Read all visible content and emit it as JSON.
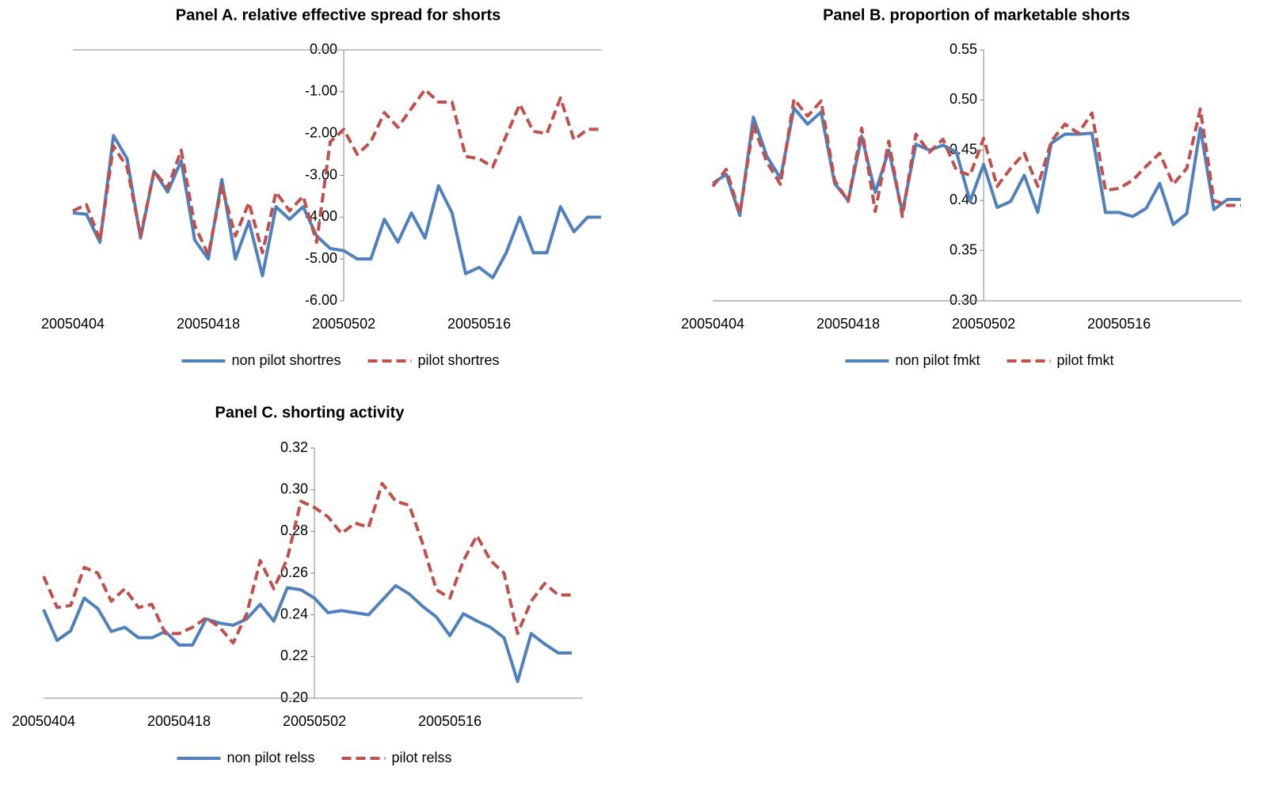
{
  "chart_data": [
    {
      "type": "line",
      "title": "Panel A. relative effective spread for shorts",
      "categories": [
        "20050404",
        null,
        null,
        null,
        null,
        null,
        null,
        null,
        null,
        null,
        "20050418",
        null,
        null,
        null,
        null,
        null,
        null,
        null,
        null,
        null,
        "20050502",
        null,
        null,
        null,
        null,
        null,
        null,
        null,
        null,
        null,
        "20050516",
        null,
        null,
        null,
        null,
        null,
        null,
        null,
        null,
        null
      ],
      "series": [
        {
          "name": "non pilot shortres",
          "color": "#4f81bd",
          "linestyle": "solid",
          "values": [
            -3.9,
            -3.93,
            -4.6,
            -2.05,
            -2.6,
            -4.5,
            -2.9,
            -3.4,
            -2.65,
            -4.55,
            -5.0,
            -3.1,
            -5.0,
            -4.1,
            -5.4,
            -3.75,
            -4.05,
            -3.75,
            -4.45,
            -4.75,
            -4.8,
            -5.0,
            -5.0,
            -4.05,
            -4.6,
            -3.9,
            -4.5,
            -3.25,
            -3.9,
            -5.35,
            -5.2,
            -5.45,
            -4.85,
            -4.0,
            -4.85,
            -4.85,
            -3.75,
            -4.35,
            -4.0,
            -4.0
          ]
        },
        {
          "name": "pilot shortres",
          "color": "#c0504d",
          "linestyle": "dashed",
          "values": [
            -3.85,
            -3.7,
            -4.55,
            -2.3,
            -2.8,
            -4.45,
            -2.9,
            -3.3,
            -2.4,
            -4.2,
            -4.9,
            -3.25,
            -4.45,
            -3.65,
            -4.85,
            -3.4,
            -3.85,
            -3.5,
            -4.6,
            -2.2,
            -1.9,
            -2.5,
            -2.2,
            -1.5,
            -1.85,
            -1.4,
            -0.95,
            -1.25,
            -1.25,
            -2.55,
            -2.6,
            -2.8,
            -2.05,
            -1.3,
            -1.95,
            -2.0,
            -1.15,
            -2.15,
            -1.9,
            -1.9
          ]
        }
      ],
      "ylim": [
        -6,
        0
      ],
      "yticks": [
        {
          "value": 0,
          "label": "0.00"
        },
        {
          "value": -1,
          "label": "-1.00"
        },
        {
          "value": -2,
          "label": "-2.00"
        },
        {
          "value": -3,
          "label": "-3.00"
        },
        {
          "value": -4,
          "label": "-4.00"
        },
        {
          "value": -5,
          "label": "-5.00"
        },
        {
          "value": -6,
          "label": "-6.00"
        }
      ],
      "grid": false,
      "legend": "bottom"
    },
    {
      "type": "line",
      "title": "Panel B. proportion of marketable shorts",
      "categories": [
        "20050404",
        null,
        null,
        null,
        null,
        null,
        null,
        null,
        null,
        null,
        "20050418",
        null,
        null,
        null,
        null,
        null,
        null,
        null,
        null,
        null,
        "20050502",
        null,
        null,
        null,
        null,
        null,
        null,
        null,
        null,
        null,
        "20050516",
        null,
        null,
        null,
        null,
        null,
        null,
        null,
        null,
        null
      ],
      "series": [
        {
          "name": "non pilot fmkt",
          "color": "#4f81bd",
          "linestyle": "solid",
          "values": [
            0.417,
            0.426,
            0.385,
            0.483,
            0.444,
            0.422,
            0.492,
            0.476,
            0.488,
            0.417,
            0.4,
            0.464,
            0.408,
            0.45,
            0.388,
            0.456,
            0.45,
            0.455,
            0.448,
            0.399,
            0.436,
            0.393,
            0.399,
            0.425,
            0.388,
            0.457,
            0.466,
            0.466,
            0.467,
            0.388,
            0.388,
            0.384,
            0.392,
            0.417,
            0.376,
            0.387,
            0.472,
            0.391,
            0.401,
            0.401
          ]
        },
        {
          "name": "pilot fmkt",
          "color": "#c0504d",
          "linestyle": "dashed",
          "values": [
            0.414,
            0.431,
            0.387,
            0.475,
            0.438,
            0.416,
            0.501,
            0.484,
            0.499,
            0.42,
            0.399,
            0.472,
            0.389,
            0.459,
            0.384,
            0.466,
            0.448,
            0.461,
            0.43,
            0.425,
            0.462,
            0.414,
            0.432,
            0.447,
            0.414,
            0.459,
            0.476,
            0.467,
            0.487,
            0.41,
            0.412,
            0.42,
            0.434,
            0.447,
            0.416,
            0.432,
            0.491,
            0.4,
            0.395,
            0.395
          ]
        }
      ],
      "ylim": [
        0.3,
        0.55
      ],
      "yticks": [
        {
          "value": 0.3,
          "label": "0.30"
        },
        0.35,
        {
          "value": 0.4,
          "label": "0.40"
        },
        0.45,
        {
          "value": 0.5,
          "label": "0.50"
        },
        0.55
      ],
      "grid": false,
      "legend": "bottom"
    },
    {
      "type": "line",
      "title": "Panel C. shorting activity",
      "categories": [
        "20050404",
        null,
        null,
        null,
        null,
        null,
        null,
        null,
        null,
        null,
        "20050418",
        null,
        null,
        null,
        null,
        null,
        null,
        null,
        null,
        null,
        "20050502",
        null,
        null,
        null,
        null,
        null,
        null,
        null,
        null,
        null,
        "20050516",
        null,
        null,
        null,
        null,
        null,
        null,
        null,
        null,
        null
      ],
      "series": [
        {
          "name": "non pilot relss",
          "color": "#4f81bd",
          "linestyle": "solid",
          "values": [
            0.2425,
            0.2277,
            0.2323,
            0.248,
            0.243,
            0.232,
            0.234,
            0.229,
            0.229,
            0.232,
            0.2255,
            0.2255,
            0.238,
            0.236,
            0.235,
            0.238,
            0.245,
            0.237,
            0.253,
            0.252,
            0.248,
            0.241,
            0.242,
            0.241,
            0.24,
            0.247,
            0.254,
            0.25,
            0.244,
            0.239,
            0.23,
            0.2405,
            0.237,
            0.234,
            0.229,
            0.208,
            0.231,
            0.226,
            0.2217,
            0.2217
          ]
        },
        {
          "name": "pilot relss",
          "color": "#c0504d",
          "linestyle": "dashed",
          "values": [
            0.2585,
            0.2435,
            0.2445,
            0.2627,
            0.26,
            0.2465,
            0.2525,
            0.2435,
            0.245,
            0.231,
            0.231,
            0.234,
            0.2385,
            0.234,
            0.2265,
            0.2405,
            0.266,
            0.2525,
            0.267,
            0.2945,
            0.2915,
            0.287,
            0.279,
            0.284,
            0.282,
            0.303,
            0.2945,
            0.2925,
            0.274,
            0.252,
            0.248,
            0.266,
            0.278,
            0.266,
            0.26,
            0.231,
            0.2465,
            0.255,
            0.2495,
            0.2495
          ]
        }
      ],
      "ylim": [
        0.2,
        0.32
      ],
      "yticks": [
        {
          "value": 0.2,
          "label": "0.20"
        },
        0.22,
        0.24,
        0.26,
        0.28,
        {
          "value": 0.3,
          "label": "0.30"
        },
        0.32
      ],
      "grid": false,
      "legend": "bottom"
    }
  ]
}
